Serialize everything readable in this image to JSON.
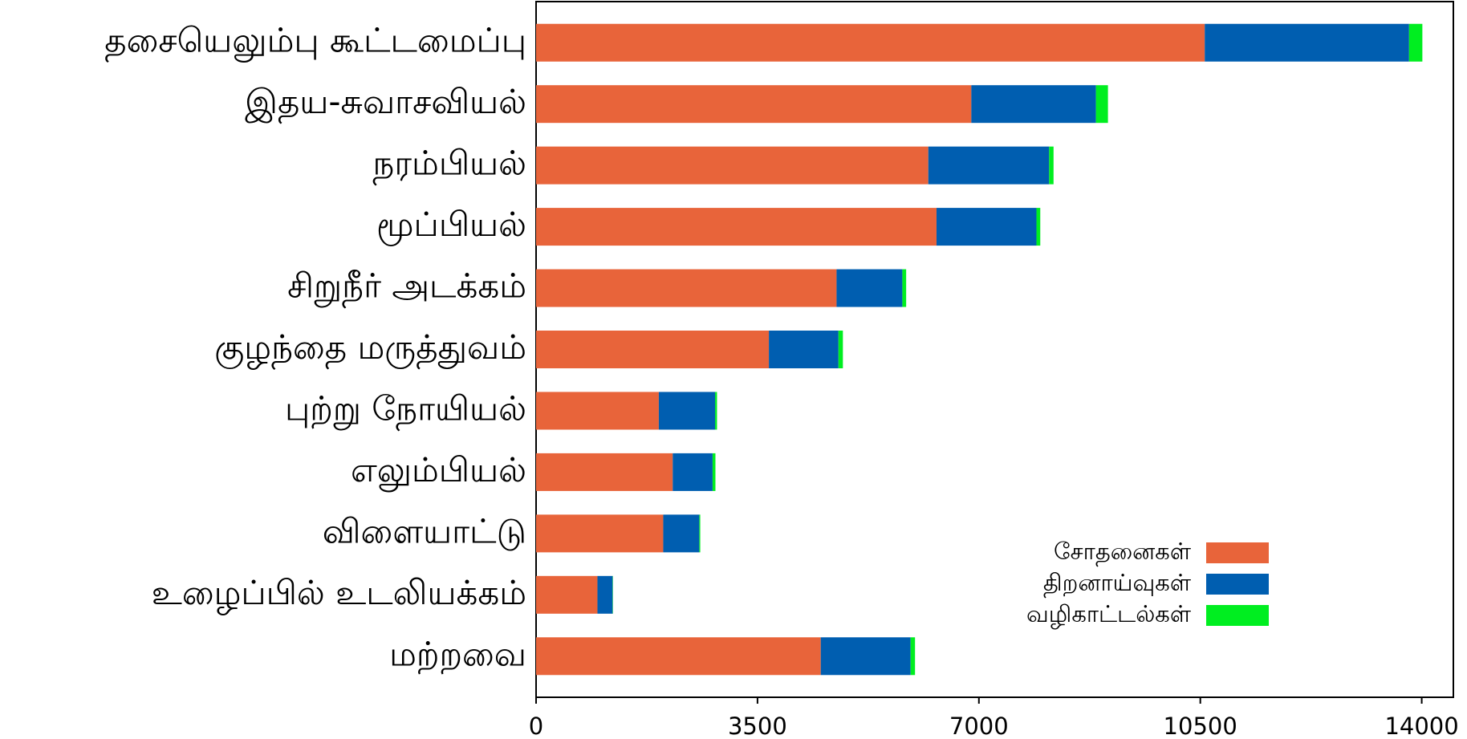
{
  "chart_data": {
    "type": "stacked_barh",
    "categories": [
      "தசையெலும்பு கூட்டமைப்பு",
      "இதய-சுவாசவியல்",
      "நரம்பியல்",
      "மூப்பியல்",
      "சிறுநீர் அடக்கம்",
      "குழந்தை மருத்துவம்",
      "புற்று நோயியல்",
      "எலும்பியல்",
      "விளையாட்டு",
      "உழைப்பில் உடலியக்கம்",
      "மற்றவை"
    ],
    "series": [
      {
        "name": "சோதனைகள்",
        "color": "#e8643a",
        "values": [
          10570,
          6880,
          6200,
          6330,
          4750,
          3680,
          1940,
          2160,
          2010,
          970,
          4500
        ]
      },
      {
        "name": "திறனாய்வுகள்",
        "color": "#005eb0",
        "values": [
          3230,
          1970,
          1910,
          1580,
          1040,
          1100,
          890,
          630,
          570,
          240,
          1420
        ]
      },
      {
        "name": "வழிகாட்டல்கள்",
        "color": "#00ee20",
        "values": [
          210,
          190,
          70,
          60,
          60,
          70,
          30,
          45,
          15,
          5,
          70
        ]
      }
    ],
    "xlim": [
      0,
      14500
    ],
    "xticks": [
      0,
      3500,
      7000,
      10500,
      14000
    ],
    "legend": "lower right"
  }
}
